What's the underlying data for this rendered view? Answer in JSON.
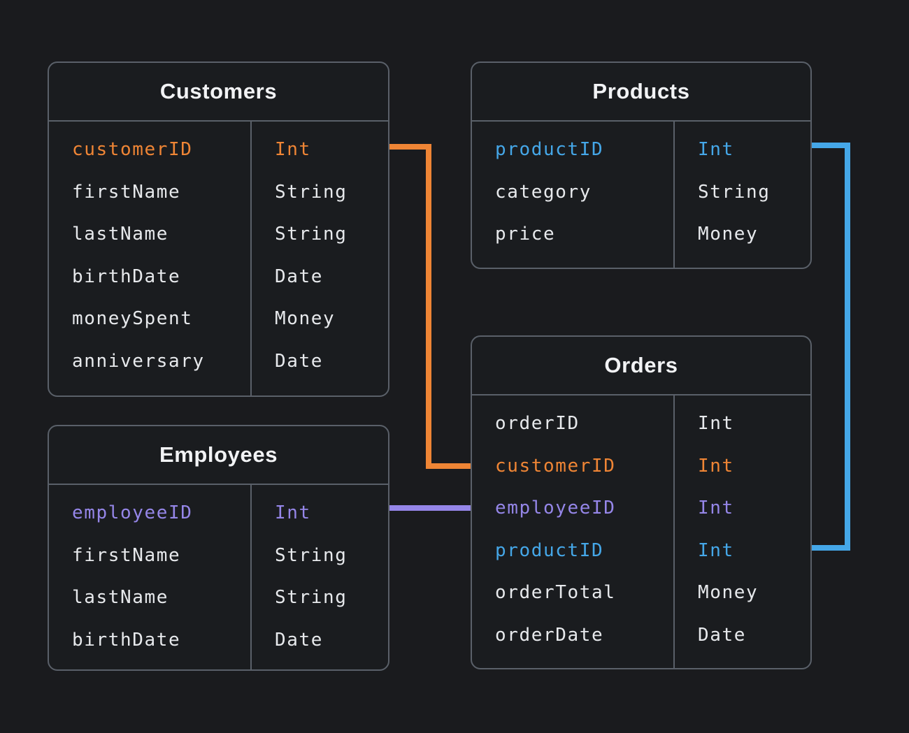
{
  "page": {
    "background": "#1A1B1E"
  },
  "colors": {
    "orange": "#EF8535",
    "blue": "#45A7E8",
    "purple": "#9586E8",
    "text": "#E7E9EC",
    "title": "#F2F3F5",
    "border": "#5A6069"
  },
  "tables": {
    "customers": {
      "title": "Customers",
      "fields": [
        {
          "name": "customerID",
          "type": "Int",
          "color": "orange"
        },
        {
          "name": "firstName",
          "type": "String",
          "color": null
        },
        {
          "name": "lastName",
          "type": "String",
          "color": null
        },
        {
          "name": "birthDate",
          "type": "Date",
          "color": null
        },
        {
          "name": "moneySpent",
          "type": "Money",
          "color": null
        },
        {
          "name": "anniversary",
          "type": "Date",
          "color": null
        }
      ]
    },
    "products": {
      "title": "Products",
      "fields": [
        {
          "name": "productID",
          "type": "Int",
          "color": "blue"
        },
        {
          "name": "category",
          "type": "String",
          "color": null
        },
        {
          "name": "price",
          "type": "Money",
          "color": null
        }
      ]
    },
    "employees": {
      "title": "Employees",
      "fields": [
        {
          "name": "employeeID",
          "type": "Int",
          "color": "purple"
        },
        {
          "name": "firstName",
          "type": "String",
          "color": null
        },
        {
          "name": "lastName",
          "type": "String",
          "color": null
        },
        {
          "name": "birthDate",
          "type": "Date",
          "color": null
        }
      ]
    },
    "orders": {
      "title": "Orders",
      "fields": [
        {
          "name": "orderID",
          "type": "Int",
          "color": null
        },
        {
          "name": "customerID",
          "type": "Int",
          "color": "orange"
        },
        {
          "name": "employeeID",
          "type": "Int",
          "color": "purple"
        },
        {
          "name": "productID",
          "type": "Int",
          "color": "blue"
        },
        {
          "name": "orderTotal",
          "type": "Money",
          "color": null
        },
        {
          "name": "orderDate",
          "type": "Date",
          "color": null
        }
      ]
    }
  },
  "relationships": [
    {
      "from": "Customers.customerID",
      "to": "Orders.customerID",
      "color": "orange"
    },
    {
      "from": "Employees.employeeID",
      "to": "Orders.employeeID",
      "color": "purple"
    },
    {
      "from": "Products.productID",
      "to": "Orders.productID",
      "color": "blue"
    }
  ]
}
